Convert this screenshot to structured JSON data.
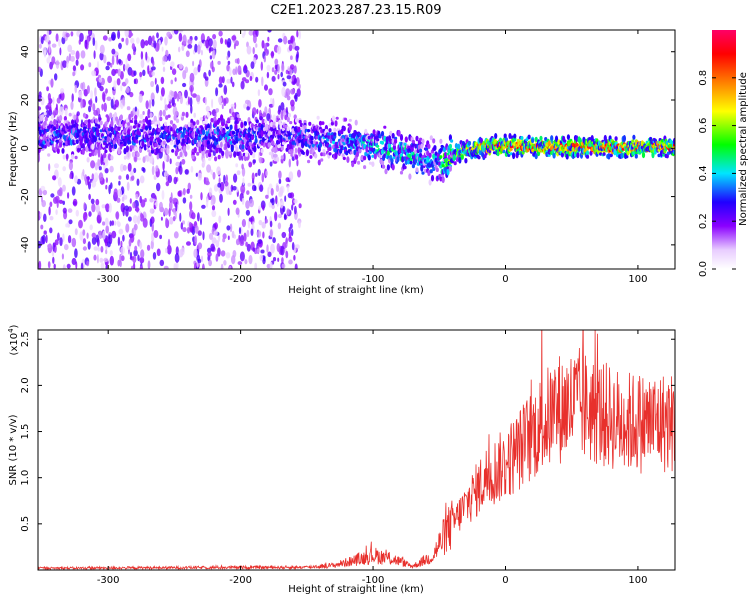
{
  "title": "C2E1.2023.287.23.15.R09",
  "chart_data": [
    {
      "type": "heatmap",
      "xlabel": "Height of straight line (km)",
      "ylabel": "Frequency (Hz)",
      "xlim": [
        -353,
        128
      ],
      "ylim": [
        -50,
        49
      ],
      "xticks": [
        -300,
        -200,
        -100,
        0,
        100
      ],
      "yticks": [
        -40,
        -20,
        0,
        20,
        40
      ],
      "colorbar": {
        "label": "Normalized spectral amplitude",
        "range": [
          0.0,
          1.0
        ],
        "ticks": [
          0.0,
          0.2,
          0.4,
          0.6,
          0.8
        ],
        "colors": [
          "#ffffff",
          "#e8ccff",
          "#8a00ff",
          "#2000ff",
          "#00e5ff",
          "#00ff00",
          "#ffff00",
          "#ff8000",
          "#ff0000",
          "#ff0066"
        ]
      },
      "ridge": {
        "x": [
          -350,
          -300,
          -250,
          -200,
          -170,
          -150,
          -130,
          -110,
          -90,
          -75,
          -60,
          -50,
          -40,
          -30,
          -20,
          -10,
          0,
          50,
          100,
          128
        ],
        "y": [
          5,
          5,
          5,
          5,
          5,
          4,
          3,
          2,
          0,
          -2,
          -5,
          -6,
          -3,
          -1,
          0,
          1,
          1,
          0.5,
          0.5,
          0.5
        ],
        "peak_amplitude": [
          0.3,
          0.3,
          0.3,
          0.35,
          0.25,
          0.3,
          0.35,
          0.4,
          0.45,
          0.45,
          0.4,
          0.45,
          0.6,
          0.7,
          0.8,
          0.85,
          0.9,
          0.9,
          0.9,
          0.85
        ]
      },
      "scatter_noise_region": [
        -353,
        -155
      ]
    },
    {
      "type": "line",
      "xlabel": "Height of straight line (km)",
      "ylabel": "SNR (10 * v/v)",
      "y_multiplier": "(x10",
      "y_multiplier_exp": "4",
      "y_multiplier_close": ")",
      "xlim": [
        -353,
        128
      ],
      "ylim": [
        0,
        2.6
      ],
      "xticks": [
        -300,
        -200,
        -100,
        0,
        100
      ],
      "yticks": [
        0.5,
        1.0,
        1.5,
        2.0,
        2.5
      ],
      "ytick_labels": [
        "0.5",
        "1.0",
        "1.5",
        "2.0",
        "2.5"
      ],
      "color": "#e8302c",
      "envelope": {
        "x": [
          -353,
          -150,
          -130,
          -115,
          -100,
          -85,
          -70,
          -55,
          -45,
          -35,
          -25,
          -15,
          0,
          10,
          25,
          40,
          55,
          70,
          90,
          110,
          128
        ],
        "y": [
          0.02,
          0.03,
          0.05,
          0.1,
          0.16,
          0.12,
          0.04,
          0.15,
          0.4,
          0.6,
          0.8,
          1.0,
          1.15,
          1.3,
          1.55,
          1.75,
          1.8,
          1.7,
          1.6,
          1.6,
          1.6
        ]
      }
    }
  ],
  "colorbar_tick_labels": [
    "0.0",
    "0.2",
    "0.4",
    "0.6",
    "0.8"
  ]
}
